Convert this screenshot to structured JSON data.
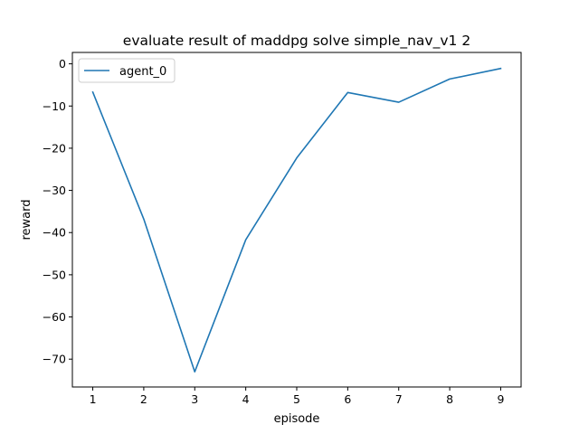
{
  "chart_data": {
    "type": "line",
    "title": "evaluate result of maddpg solve simple_nav_v1 2",
    "xlabel": "episode",
    "ylabel": "reward",
    "x": [
      1,
      2,
      3,
      4,
      5,
      6,
      7,
      8,
      9
    ],
    "xticks": [
      1,
      2,
      3,
      4,
      5,
      6,
      7,
      8,
      9
    ],
    "xlim": [
      0.6,
      9.4
    ],
    "yticks": [
      0,
      -10,
      -20,
      -30,
      -40,
      -50,
      -60,
      -70
    ],
    "ytick_labels": [
      "0",
      "−10",
      "−20",
      "−30",
      "−40",
      "−50",
      "−60",
      "−70"
    ],
    "ylim": [
      -76.6,
      2.7
    ],
    "grid": false,
    "legend_position": "top-left",
    "series": [
      {
        "name": "agent_0",
        "color": "#1f77b4",
        "values": [
          -6.7,
          -36.8,
          -73.0,
          -41.7,
          -22.3,
          -6.8,
          -9.1,
          -3.6,
          -1.1
        ]
      }
    ]
  }
}
